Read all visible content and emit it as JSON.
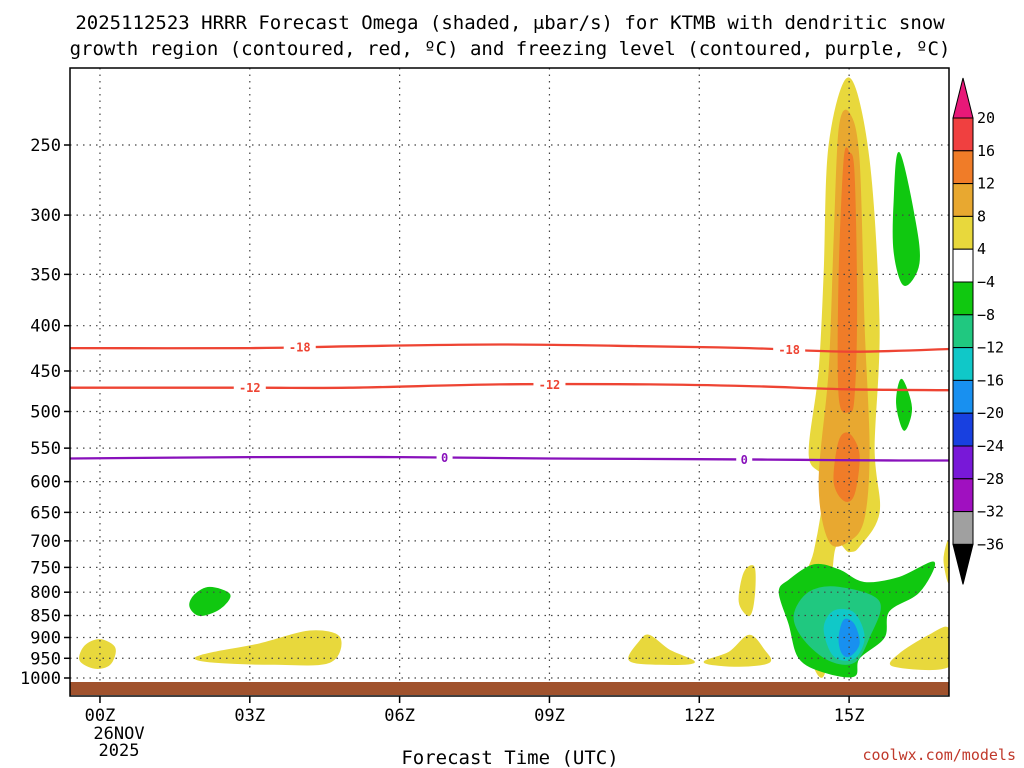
{
  "chart_data": {
    "type": "contour",
    "title_line1": "2025112523 HRRR Forecast Omega (shaded, μbar/s) for KTMB with dendritic snow",
    "title_line2": "growth region (contoured, red, ºC) and freezing level (contoured, purple, ºC)",
    "xlabel": "Forecast Time (UTC)",
    "x_ticks": [
      "00Z",
      "03Z",
      "06Z",
      "09Z",
      "12Z",
      "15Z"
    ],
    "x_tick_hours": [
      0,
      3,
      6,
      9,
      12,
      15
    ],
    "x_range_hours": [
      -0.6,
      17
    ],
    "date_label_1": "26NOV",
    "date_label_2": "2025",
    "y_ticks": [
      250,
      300,
      350,
      400,
      450,
      500,
      550,
      600,
      650,
      700,
      750,
      800,
      850,
      900,
      950,
      1000
    ],
    "y_range_hpa": [
      200,
      1020
    ],
    "colorbar": {
      "labels": [
        "20",
        "16",
        "12",
        "8",
        "4",
        "−4",
        "−8",
        "−12",
        "−16",
        "−20",
        "−24",
        "−28",
        "−32",
        "−36"
      ],
      "colors": [
        "#e81878",
        "#f04040",
        "#f07c28",
        "#e8a830",
        "#e8d83c",
        "#ffffff",
        "#10c810",
        "#20c880",
        "#10c8c8",
        "#1890f0",
        "#1840e0",
        "#7818d8",
        "#a010c0",
        "#a0a0a0",
        "#000000"
      ]
    },
    "contour_series": [
      {
        "name": "-18",
        "color": "#ee4433",
        "type": "temperature",
        "points": [
          [
            -0.6,
            424
          ],
          [
            3,
            424
          ],
          [
            5,
            422
          ],
          [
            8,
            420
          ],
          [
            11,
            422
          ],
          [
            13,
            424
          ],
          [
            15,
            428
          ],
          [
            17,
            425
          ]
        ],
        "label_hours": [
          4,
          13.8
        ]
      },
      {
        "name": "-12",
        "color": "#ee4433",
        "type": "temperature",
        "points": [
          [
            -0.6,
            470
          ],
          [
            3,
            470
          ],
          [
            5,
            470
          ],
          [
            8,
            466
          ],
          [
            11,
            466
          ],
          [
            13,
            468
          ],
          [
            15,
            472
          ],
          [
            17,
            473
          ]
        ],
        "label_hours": [
          3,
          9
        ]
      },
      {
        "name": "0",
        "color": "#8811bb",
        "type": "freezing level",
        "points": [
          [
            -0.6,
            565
          ],
          [
            3,
            563
          ],
          [
            6,
            563
          ],
          [
            9,
            565
          ],
          [
            12,
            566
          ],
          [
            14,
            567
          ],
          [
            16,
            568
          ],
          [
            17,
            568
          ]
        ],
        "label_hours": [
          6.9,
          12.9
        ]
      }
    ],
    "omega_regions": [
      {
        "name": "ascent-core-15z",
        "level": "4",
        "color": "#e8d83c",
        "points": [
          [
            14.5,
            990
          ],
          [
            14.1,
            900
          ],
          [
            14,
            800
          ],
          [
            14.3,
            720
          ],
          [
            14.5,
            600
          ],
          [
            14.2,
            560
          ],
          [
            14.4,
            450
          ],
          [
            14.5,
            350
          ],
          [
            14.6,
            250
          ],
          [
            15,
            210
          ],
          [
            15.4,
            260
          ],
          [
            15.6,
            400
          ],
          [
            15.5,
            550
          ],
          [
            15.6,
            650
          ],
          [
            15.2,
            710
          ],
          [
            15,
            720
          ],
          [
            14.7,
            720
          ]
        ]
      },
      {
        "name": "ascent-core-15z-8",
        "level": "8",
        "color": "#e8a830",
        "points": [
          [
            14.6,
            700
          ],
          [
            14.4,
            600
          ],
          [
            14.6,
            450
          ],
          [
            14.7,
            320
          ],
          [
            14.8,
            240
          ],
          [
            15,
            230
          ],
          [
            15.2,
            260
          ],
          [
            15.3,
            400
          ],
          [
            15.4,
            550
          ],
          [
            15.3,
            660
          ],
          [
            15,
            700
          ]
        ]
      },
      {
        "name": "ascent-core-15z-12",
        "level": "12",
        "color": "#f07c28",
        "points": [
          [
            14.8,
            480
          ],
          [
            14.8,
            350
          ],
          [
            14.9,
            260
          ],
          [
            15,
            255
          ],
          [
            15.1,
            270
          ],
          [
            15.15,
            380
          ],
          [
            15.1,
            480
          ],
          [
            15,
            500
          ]
        ]
      },
      {
        "name": "ascent-core-15z-12b",
        "level": "12",
        "color": "#f07c28",
        "points": [
          [
            14.7,
            600
          ],
          [
            14.8,
            540
          ],
          [
            15,
            530
          ],
          [
            15.2,
            560
          ],
          [
            15.1,
            620
          ],
          [
            14.9,
            630
          ]
        ]
      },
      {
        "name": "small-yellow-00z",
        "level": "4",
        "color": "#e8d83c",
        "points": [
          [
            -0.4,
            955
          ],
          [
            -0.3,
            920
          ],
          [
            0,
            905
          ],
          [
            0.3,
            925
          ],
          [
            0.2,
            965
          ],
          [
            -0.1,
            975
          ]
        ]
      },
      {
        "name": "yellow-03z-05z",
        "level": "4",
        "color": "#e8d83c",
        "points": [
          [
            1.9,
            950
          ],
          [
            2.3,
            935
          ],
          [
            3.2,
            915
          ],
          [
            4.2,
            885
          ],
          [
            4.8,
            900
          ],
          [
            4.6,
            960
          ],
          [
            3.5,
            965
          ],
          [
            2.3,
            960
          ]
        ]
      },
      {
        "name": "green-02z",
        "level": "-4",
        "color": "#10c810",
        "points": [
          [
            1.8,
            830
          ],
          [
            1.9,
            805
          ],
          [
            2.2,
            790
          ],
          [
            2.6,
            805
          ],
          [
            2.4,
            835
          ],
          [
            2,
            850
          ]
        ]
      },
      {
        "name": "yellow-11z",
        "level": "4",
        "color": "#e8d83c",
        "points": [
          [
            10.6,
            955
          ],
          [
            10.8,
            910
          ],
          [
            11,
            895
          ],
          [
            11.4,
            930
          ],
          [
            11.9,
            960
          ],
          [
            11.2,
            965
          ]
        ]
      },
      {
        "name": "yellow-13z-low",
        "level": "4",
        "color": "#e8d83c",
        "points": [
          [
            12.1,
            960
          ],
          [
            12.6,
            935
          ],
          [
            13,
            895
          ],
          [
            13.3,
            930
          ],
          [
            13.4,
            960
          ],
          [
            12.8,
            970
          ]
        ]
      },
      {
        "name": "yellow-13z-up",
        "level": "4",
        "color": "#e8d83c",
        "points": [
          [
            12.8,
            820
          ],
          [
            12.9,
            760
          ],
          [
            13.1,
            750
          ],
          [
            13.1,
            810
          ],
          [
            13,
            850
          ]
        ]
      },
      {
        "name": "green-16z-upper",
        "level": "-4",
        "color": "#10c810",
        "points": [
          [
            15.9,
            290
          ],
          [
            16,
            255
          ],
          [
            16.3,
            300
          ],
          [
            16.4,
            340
          ],
          [
            16.1,
            360
          ],
          [
            15.9,
            330
          ]
        ]
      },
      {
        "name": "green-16z-mid",
        "level": "-4",
        "color": "#10c810",
        "points": [
          [
            15.95,
            490
          ],
          [
            16.05,
            460
          ],
          [
            16.25,
            495
          ],
          [
            16.1,
            525
          ]
        ]
      },
      {
        "name": "descent-15z-green",
        "level": "-4",
        "color": "#10c810",
        "points": [
          [
            13.6,
            800
          ],
          [
            13.8,
            775
          ],
          [
            14.3,
            745
          ],
          [
            14.8,
            755
          ],
          [
            15.3,
            780
          ],
          [
            16,
            770
          ],
          [
            16.7,
            740
          ],
          [
            16.4,
            800
          ],
          [
            15.8,
            840
          ],
          [
            15.7,
            900
          ],
          [
            15.2,
            950
          ],
          [
            15.1,
            995
          ],
          [
            14.5,
            985
          ],
          [
            14,
            950
          ],
          [
            13.8,
            870
          ]
        ]
      },
      {
        "name": "descent-15z-teal",
        "level": "-8",
        "color": "#20c880",
        "points": [
          [
            13.9,
            850
          ],
          [
            14.2,
            800
          ],
          [
            14.8,
            790
          ],
          [
            15.6,
            820
          ],
          [
            15.4,
            900
          ],
          [
            15.1,
            960
          ],
          [
            14.6,
            955
          ],
          [
            14.1,
            905
          ]
        ]
      },
      {
        "name": "descent-15z-cyan",
        "level": "-12",
        "color": "#10c8c8",
        "points": [
          [
            14.5,
            880
          ],
          [
            14.7,
            840
          ],
          [
            15.1,
            845
          ],
          [
            15.3,
            900
          ],
          [
            15.1,
            950
          ],
          [
            14.7,
            945
          ]
        ]
      },
      {
        "name": "descent-15z-blue",
        "level": "-16",
        "color": "#1890f0",
        "points": [
          [
            14.8,
            900
          ],
          [
            14.9,
            860
          ],
          [
            15.1,
            870
          ],
          [
            15.2,
            915
          ],
          [
            15,
            945
          ],
          [
            14.85,
            935
          ]
        ]
      },
      {
        "name": "yellow-17z-low",
        "level": "4",
        "color": "#e8d83c",
        "points": [
          [
            15.9,
            970
          ],
          [
            16,
            940
          ],
          [
            16.6,
            895
          ],
          [
            17,
            880
          ],
          [
            17,
            970
          ]
        ]
      },
      {
        "name": "yellow-17z-edge",
        "level": "4",
        "color": "#e8d83c",
        "points": [
          [
            16.9,
            735
          ],
          [
            17,
            700
          ],
          [
            17,
            780
          ]
        ]
      }
    ],
    "ground_band_color": "#a0522d",
    "credit": "coolwx.com/models"
  }
}
